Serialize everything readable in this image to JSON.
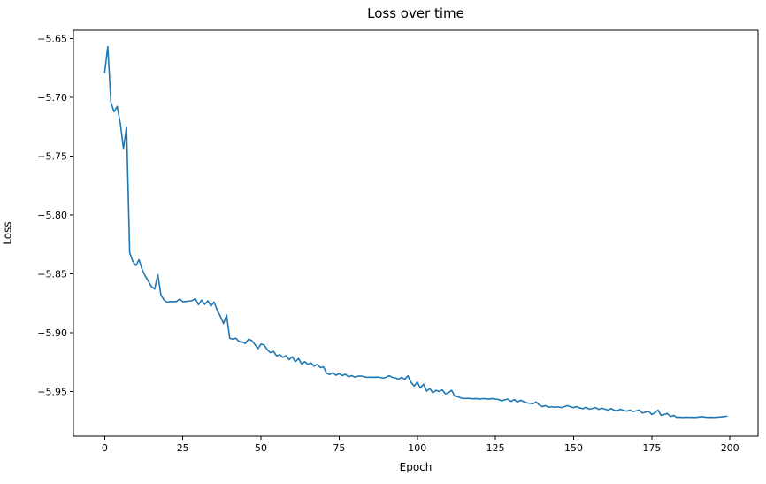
{
  "style": {
    "background": "#ffffff",
    "line_color": "#1f77b4",
    "spine_color": "#000000",
    "text_color": "#000000"
  },
  "chart_data": {
    "type": "line",
    "title": "Loss over time",
    "xlabel": "Epoch",
    "ylabel": "Loss",
    "grid": false,
    "legend": false,
    "xlim": [
      -10,
      209
    ],
    "ylim": [
      -5.988,
      -5.643
    ],
    "x_ticks": [
      0,
      25,
      50,
      75,
      100,
      125,
      150,
      175,
      200
    ],
    "x_tick_labels": [
      "0",
      "25",
      "50",
      "75",
      "100",
      "125",
      "150",
      "175",
      "200"
    ],
    "y_ticks": [
      -5.65,
      -5.7,
      -5.75,
      -5.8,
      -5.85,
      -5.9,
      -5.95
    ],
    "y_tick_labels": [
      "−5.65",
      "−5.70",
      "−5.75",
      "−5.80",
      "−5.85",
      "−5.90",
      "−5.95"
    ],
    "series": [
      {
        "name": "loss",
        "color": "#1f77b4",
        "x_start": 0,
        "x_step": 1,
        "y": [
          -5.679,
          -5.657,
          -5.7045,
          -5.7125,
          -5.7078,
          -5.7222,
          -5.7435,
          -5.7253,
          -5.832,
          -5.8395,
          -5.843,
          -5.838,
          -5.8465,
          -5.852,
          -5.8565,
          -5.861,
          -5.863,
          -5.8507,
          -5.868,
          -5.8723,
          -5.8742,
          -5.8736,
          -5.8738,
          -5.8735,
          -5.8715,
          -5.8738,
          -5.8735,
          -5.8732,
          -5.8728,
          -5.8712,
          -5.8762,
          -5.8724,
          -5.876,
          -5.873,
          -5.8774,
          -5.874,
          -5.8812,
          -5.886,
          -5.8923,
          -5.885,
          -5.9048,
          -5.9055,
          -5.9048,
          -5.9077,
          -5.908,
          -5.9092,
          -5.9056,
          -5.9066,
          -5.9098,
          -5.9136,
          -5.9098,
          -5.9105,
          -5.9145,
          -5.917,
          -5.916,
          -5.9198,
          -5.9187,
          -5.921,
          -5.9196,
          -5.923,
          -5.9205,
          -5.9247,
          -5.922,
          -5.9265,
          -5.9247,
          -5.927,
          -5.9257,
          -5.9285,
          -5.927,
          -5.9297,
          -5.929,
          -5.9347,
          -5.9355,
          -5.934,
          -5.9362,
          -5.9347,
          -5.9365,
          -5.9353,
          -5.9375,
          -5.9365,
          -5.9378,
          -5.937,
          -5.9368,
          -5.9375,
          -5.938,
          -5.9378,
          -5.938,
          -5.9378,
          -5.938,
          -5.9387,
          -5.938,
          -5.9365,
          -5.938,
          -5.9385,
          -5.9395,
          -5.938,
          -5.9397,
          -5.9366,
          -5.9422,
          -5.9454,
          -5.942,
          -5.947,
          -5.9438,
          -5.9497,
          -5.9475,
          -5.951,
          -5.949,
          -5.95,
          -5.9487,
          -5.952,
          -5.951,
          -5.949,
          -5.954,
          -5.9545,
          -5.9555,
          -5.956,
          -5.9558,
          -5.956,
          -5.9562,
          -5.956,
          -5.9565,
          -5.956,
          -5.9562,
          -5.9565,
          -5.956,
          -5.9565,
          -5.9568,
          -5.958,
          -5.957,
          -5.9565,
          -5.9585,
          -5.9568,
          -5.959,
          -5.9575,
          -5.9585,
          -5.9597,
          -5.96,
          -5.9604,
          -5.9589,
          -5.9614,
          -5.9629,
          -5.962,
          -5.9634,
          -5.963,
          -5.9634,
          -5.963,
          -5.9637,
          -5.9629,
          -5.962,
          -5.963,
          -5.9637,
          -5.9628,
          -5.964,
          -5.9646,
          -5.9634,
          -5.965,
          -5.9645,
          -5.9637,
          -5.9652,
          -5.9642,
          -5.965,
          -5.9658,
          -5.9645,
          -5.966,
          -5.9662,
          -5.9652,
          -5.966,
          -5.9668,
          -5.9658,
          -5.967,
          -5.9665,
          -5.9658,
          -5.9683,
          -5.9675,
          -5.9668,
          -5.9695,
          -5.968,
          -5.9658,
          -5.9703,
          -5.9695,
          -5.9687,
          -5.9713,
          -5.9703,
          -5.972,
          -5.9718,
          -5.9721,
          -5.9718,
          -5.972,
          -5.9719,
          -5.9721,
          -5.9717,
          -5.9713,
          -5.9718,
          -5.972,
          -5.9719,
          -5.9721,
          -5.9718,
          -5.9716,
          -5.9713,
          -5.971
        ]
      }
    ]
  }
}
